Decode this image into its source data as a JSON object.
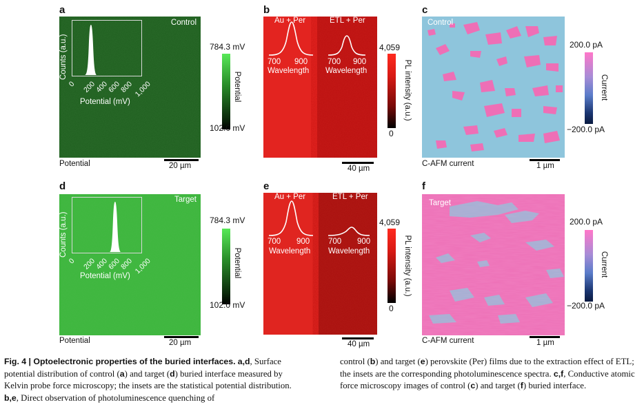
{
  "panels": {
    "a": {
      "letter": "a",
      "tag": "Control",
      "footer": "Potential",
      "scale": "20 µm",
      "inset_ylabel": "Counts (a.u.)",
      "inset_xlabel": "Potential (mV)",
      "inset_ticks": [
        "0",
        "200",
        "400",
        "600",
        "800",
        "1,000"
      ],
      "cb_max": "784.3 mV",
      "cb_min": "102.0 mV",
      "cb_title": "Potential"
    },
    "b": {
      "letter": "b",
      "left_label": "Au + Per",
      "right_label": "ETL + Per",
      "ticks_left": [
        "700",
        "900"
      ],
      "ticks_right": [
        "700",
        "900"
      ],
      "wl_left": "Wavelength",
      "wl_right": "Wavelength",
      "scale": "40 µm",
      "cb_max": "4,059",
      "cb_min": "0",
      "cb_title": "PL intensity (a.u.)"
    },
    "c": {
      "letter": "c",
      "tag": "Control",
      "footer": "C-AFM current",
      "scale": "1 µm",
      "cb_max": "200.0 pA",
      "cb_min": "−200.0 pA",
      "cb_title": "Current"
    },
    "d": {
      "letter": "d",
      "tag": "Target",
      "footer": "Potential",
      "scale": "20 µm",
      "inset_ylabel": "Counts (a.u.)",
      "inset_xlabel": "Potential (mV)",
      "inset_ticks": [
        "0",
        "200",
        "400",
        "600",
        "800",
        "1,000"
      ],
      "cb_max": "784.3 mV",
      "cb_min": "102.0 mV",
      "cb_title": "Potential"
    },
    "e": {
      "letter": "e",
      "left_label": "Au + Per",
      "right_label": "ETL + Per",
      "ticks_left": [
        "700",
        "900"
      ],
      "ticks_right": [
        "700",
        "900"
      ],
      "wl_left": "Wavelength",
      "wl_right": "Wavelength",
      "scale": "40 µm",
      "cb_max": "4,059",
      "cb_min": "0",
      "cb_title": "PL intensity (a.u.)"
    },
    "f": {
      "letter": "f",
      "tag": "Target",
      "footer": "C-AFM current",
      "scale": "1 µm",
      "cb_max": "200.0 pA",
      "cb_min": "−200.0 pA",
      "cb_title": "Current"
    }
  },
  "colors": {
    "control_kpfm": "#1d5a1d",
    "target_kpfm": "#3cb83c",
    "pl_au": "#e32420",
    "pl_etl_b": "#c51a18",
    "pl_etl_e": "#b01a16",
    "cafm_blue": "#8ec5dc",
    "cafm_pink": "#ee6fb6"
  },
  "caption": {
    "lead": "Fig. 4 | Optoelectronic properties of the buried interfaces.",
    "left": [
      {
        "b": "a,d",
        "t": ", Surface potential distribution of control ("
      },
      {
        "b": "a",
        "t": ") and target ("
      },
      {
        "b": "d",
        "t": ") buried interface measured by Kelvin probe force microscopy; the insets are the statistical potential distribution. "
      },
      {
        "b": "b,e",
        "t": ", Direct observation of photoluminescence quenching of"
      }
    ],
    "right": [
      {
        "b": "",
        "t": "control ("
      },
      {
        "b": "b",
        "t": ") and target ("
      },
      {
        "b": "e",
        "t": ") perovskite (Per) films due to the extraction effect of ETL; the insets are the corresponding photoluminescence spectra. "
      },
      {
        "b": "c,f",
        "t": ", Conductive atomic force microscopy images of control ("
      },
      {
        "b": "c",
        "t": ") and target ("
      },
      {
        "b": "f",
        "t": ") buried interface."
      }
    ]
  }
}
